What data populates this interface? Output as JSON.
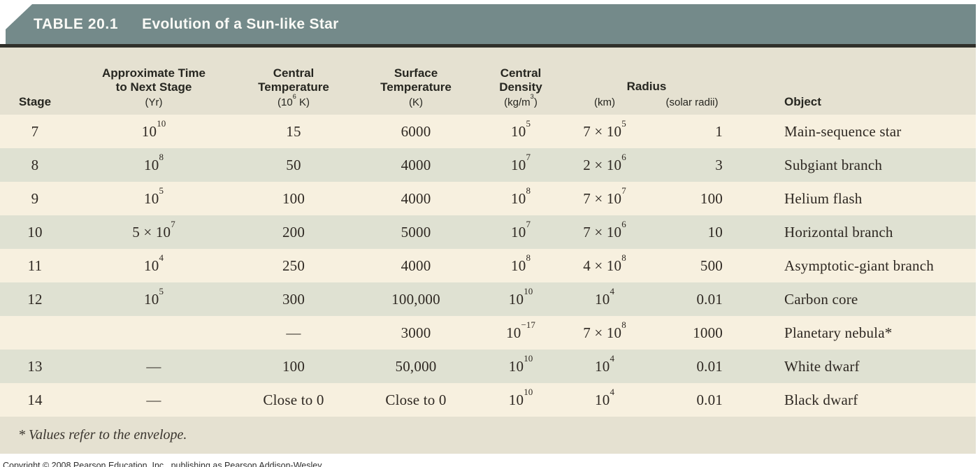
{
  "banner": {
    "table_number": "TABLE 20.1",
    "title": "Evolution of a Sun-like Star"
  },
  "columns": {
    "stage": "Stage",
    "time": {
      "line1": "Approximate Time",
      "line2": "to Next Stage",
      "unit": "(Yr)"
    },
    "central_temp": {
      "line1": "Central",
      "line2": "Temperature",
      "unit": "(10^6 K)"
    },
    "surface_temp": {
      "line1": "Surface",
      "line2": "Temperature",
      "unit": "(K)"
    },
    "central_density": {
      "line1": "Central",
      "line2": "Density",
      "unit": "(kg/m^3)"
    },
    "radius": {
      "label": "Radius",
      "unit_km": "(km)",
      "unit_solar": "(solar radii)"
    },
    "object": "Object"
  },
  "rows": [
    {
      "stage": "7",
      "time": "10^10",
      "central_temp": "15",
      "surface_temp": "6000",
      "central_density": "10^5",
      "radius_km": "7 × 10^5",
      "radius_solar": "1",
      "object": "Main-sequence star"
    },
    {
      "stage": "8",
      "time": "10^8",
      "central_temp": "50",
      "surface_temp": "4000",
      "central_density": "10^7",
      "radius_km": "2 × 10^6",
      "radius_solar": "3",
      "object": "Subgiant branch"
    },
    {
      "stage": "9",
      "time": "10^5",
      "central_temp": "100",
      "surface_temp": "4000",
      "central_density": "10^8",
      "radius_km": "7 × 10^7",
      "radius_solar": "100",
      "object": "Helium flash"
    },
    {
      "stage": "10",
      "time": "5 × 10^7",
      "central_temp": "200",
      "surface_temp": "5000",
      "central_density": "10^7",
      "radius_km": "7 × 10^6",
      "radius_solar": "10",
      "object": "Horizontal branch"
    },
    {
      "stage": "11",
      "time": "10^4",
      "central_temp": "250",
      "surface_temp": "4000",
      "central_density": "10^8",
      "radius_km": "4 × 10^8",
      "radius_solar": "500",
      "object": "Asymptotic-giant branch"
    },
    {
      "stage": "12",
      "time": "10^5",
      "central_temp": "300",
      "surface_temp": "100,000",
      "central_density": "10^10",
      "radius_km": "10^4",
      "radius_solar": "0.01",
      "object": "Carbon core"
    },
    {
      "stage": "",
      "time": "",
      "central_temp": "—",
      "surface_temp": "3000",
      "central_density": "10^−17",
      "radius_km": "7 × 10^8",
      "radius_solar": "1000",
      "object": "Planetary nebula*"
    },
    {
      "stage": "13",
      "time": "—",
      "central_temp": "100",
      "surface_temp": "50,000",
      "central_density": "10^10",
      "radius_km": "10^4",
      "radius_solar": "0.01",
      "object": "White dwarf"
    },
    {
      "stage": "14",
      "time": "—",
      "central_temp": "Close to 0",
      "surface_temp": "Close to 0",
      "central_density": "10^10",
      "radius_km": "10^4",
      "radius_solar": "0.01",
      "object": "Black dwarf"
    }
  ],
  "footnote": "* Values refer to the envelope.",
  "copyright": "Copyright © 2008 Pearson Education, Inc., publishing as Pearson Addison-Wesley.",
  "colors": {
    "banner": "#748a8a",
    "band": "#e5e1d1",
    "row_cream": "#f7f0df",
    "row_green": "#dfe1d2",
    "rule": "#30302a"
  }
}
